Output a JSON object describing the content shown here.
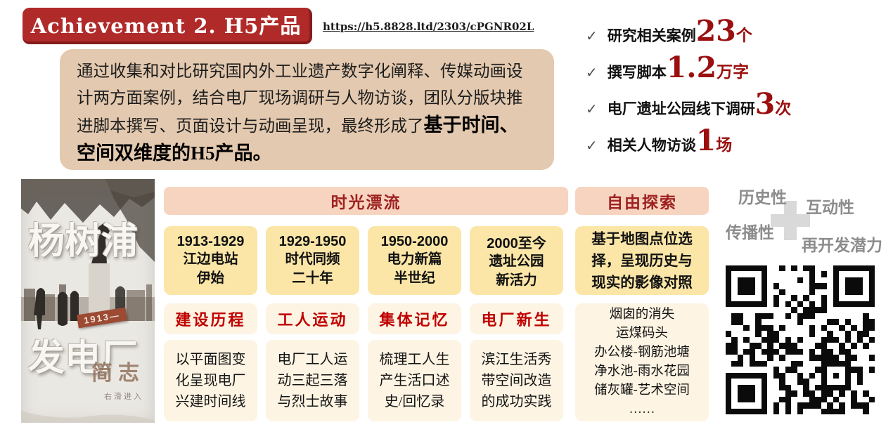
{
  "banner": {
    "title": "Achievement 2. H5产品"
  },
  "url": "https://h5.8828.ltd/2303/cPGNR02L",
  "intro": {
    "body": "通过收集和对比研究国内外工业遗产数字化阐释、传媒动画设计两方面案例，结合电厂现场调研与人物访谈，团队分版块推进脚本撰写、页面设计与动画呈现，最终形成了",
    "highlight": "基于时间、空间双维度的H5产品。"
  },
  "stats": {
    "check": "✓",
    "items": [
      {
        "prefix": "研究相关案例",
        "number": "23",
        "unit": "个"
      },
      {
        "prefix": "撰写脚本",
        "number": "1.2",
        "unit": "万字"
      },
      {
        "prefix": "电厂遗址公园线下调研",
        "number": "3",
        "unit": "次"
      },
      {
        "prefix": "相关人物访谈",
        "number": "1",
        "unit": "场"
      }
    ]
  },
  "cover": {
    "title_top": "杨树浦",
    "title_bottom": "发电厂",
    "badge": "1913—",
    "subtitle": "简志",
    "hint": "右滑进入"
  },
  "timeline": {
    "header": "时光漂流",
    "columns": [
      {
        "period": "1913-1929",
        "name": "江边电站\n伊始",
        "tag": "建设历程",
        "desc": "以平面图变\n化呈现电厂\n兴建时间线"
      },
      {
        "period": "1929-1950",
        "name": "时代同频\n二十年",
        "tag": "工人运动",
        "desc": "电厂工人运\n动三起三落\n与烈士故事"
      },
      {
        "period": "1950-2000",
        "name": "电力新篇\n半世纪",
        "tag": "集体记忆",
        "desc": "梳理工人生\n产生活口述\n史/回忆录"
      },
      {
        "period": "2000至今",
        "name": "遗址公园\n新活力",
        "tag": "电厂新生",
        "desc": "滨江生活秀\n带空间改造\n的成功实践"
      }
    ]
  },
  "explore": {
    "header": "自由探索",
    "summary": "基于地图点位选\n择，呈现历史与\n现实的影像对照",
    "items": "烟囱的消失\n运煤码头\n办公楼-钢筋池塘\n净水池-雨水花园\n储灰罐-艺术空间\n……"
  },
  "features": {
    "words": [
      "历史性",
      "互动性",
      "传播性",
      "再开发潜力"
    ]
  },
  "colors": {
    "banner_red": "#b12a2a",
    "stat_red": "#9b0f0f",
    "label_red": "#c00000",
    "header_dark_red": "#9e2121",
    "intro_beige": "#e3c9af",
    "header_peach": "#f7d4bf",
    "cell_yellow": "#fbe6a7",
    "cell_cream": "#fdf4e3",
    "feature_gray": "#8c8c8c"
  }
}
